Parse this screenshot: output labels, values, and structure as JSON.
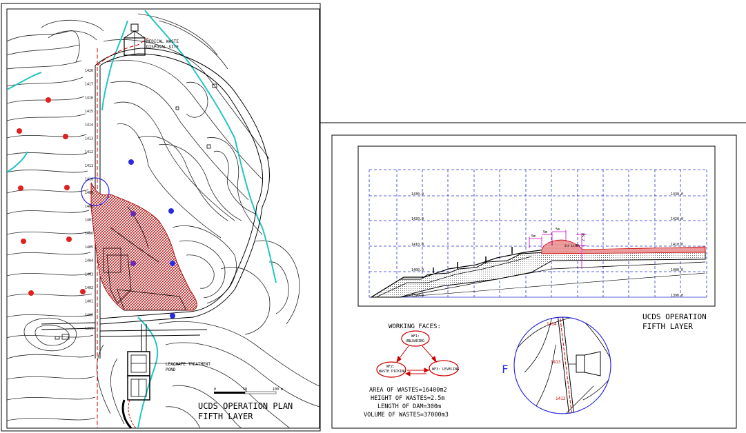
{
  "plan": {
    "title_line1": "UCDS OPERATION PLAN",
    "title_line2": "FIFTH LAYER",
    "medical_line1": "MEDICAL WASTE",
    "medical_line2": "DISPOSAL SITE",
    "leachate_line1": "LEACHATE TREATMENT",
    "leachate_line2": "POND",
    "scale_zero": "0",
    "scale_mid": "50",
    "scale_end": "100 m",
    "road_levels": [
      "1420",
      "1417",
      "1416",
      "1415",
      "1414",
      "1413",
      "1412",
      "1411",
      "1410",
      "1409",
      "1408",
      "1407",
      "1406",
      "1405",
      "1404",
      "1403",
      "1402",
      "1401",
      "1400",
      "1399"
    ]
  },
  "section": {
    "title_line1": "UCDS OPERATION",
    "title_line2": "FIFTH LAYER",
    "elev_labels": [
      "1430.0",
      "1420.0",
      "1410.0",
      "1400.0",
      "1390.0"
    ],
    "dim_5m": "5m",
    "dim_25m": "2.5m",
    "layer_label": "5th LAYER"
  },
  "working_faces": {
    "heading": "WORKING FACES:",
    "wf1_line1": "WF1:",
    "wf1_line2": "UNLOADING",
    "wf2_line1": "WF2:",
    "wf2_line2": "WASTE PICKING",
    "wf3": "WF3: LEVELING"
  },
  "stats": {
    "area": "AREA OF WASTES=16400m2",
    "height": "HEIGHT OF WASTES=2.5m",
    "length": "LENGTH OF DAM=300m",
    "volume": "VOLUME OF WASTES=37000m3"
  },
  "detail": {
    "label": "F",
    "level_top": "1414",
    "level_mid": "1413",
    "level_bot": "1412"
  },
  "colors": {
    "waste_fill": "#c0392b",
    "river": "#21c4c4",
    "marker_red": "#e02020",
    "marker_blue": "#2a2ae0",
    "marker_purple": "#6a2ab0",
    "grid_blue": "#2233cc"
  }
}
